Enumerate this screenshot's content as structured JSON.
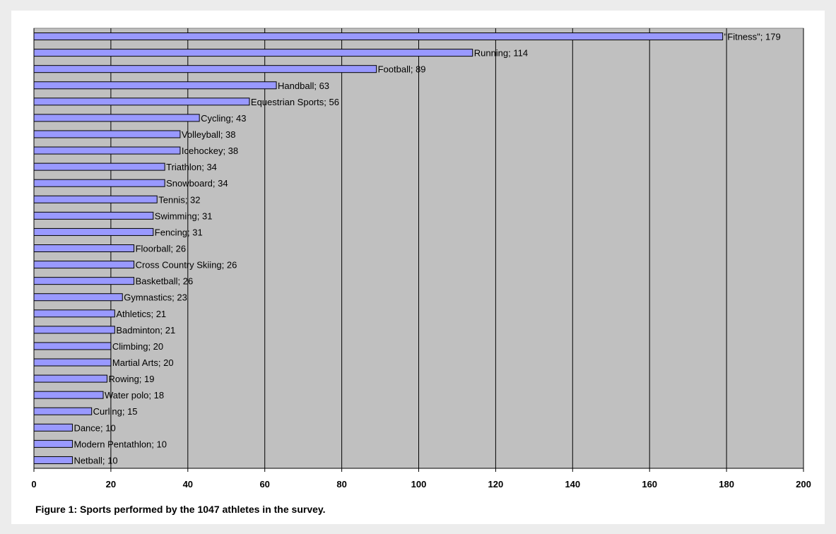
{
  "caption": "Figure 1: Sports performed by the 1047 athletes in the survey.",
  "chart_data": {
    "type": "bar",
    "orientation": "horizontal",
    "title": "",
    "xlabel": "",
    "ylabel": "",
    "xlim": [
      0,
      200
    ],
    "xticks": [
      0,
      20,
      40,
      60,
      80,
      100,
      120,
      140,
      160,
      180,
      200
    ],
    "grid": "vertical",
    "legend": "none",
    "categories": [
      "\"Fitness\"",
      "Running",
      "Football",
      "Handball",
      "Equestrian Sports",
      "Cycling",
      "Volleyball",
      "Icehockey",
      "Triathlon",
      "Snowboard",
      "Tennis",
      "Swimming",
      "Fencing",
      "Floorball",
      "Cross Country Skiing",
      "Basketball",
      "Gymnastics",
      "Athletics",
      "Badminton",
      "Climbing",
      "Martial Arts",
      "Rowing",
      "Water polo",
      "Curling",
      "Dance",
      "Modern Pentathlon",
      "Netball"
    ],
    "values": [
      179,
      114,
      89,
      63,
      56,
      43,
      38,
      38,
      34,
      34,
      32,
      31,
      31,
      26,
      26,
      26,
      23,
      21,
      21,
      20,
      20,
      19,
      18,
      15,
      10,
      10,
      10
    ],
    "colors": {
      "bar_fill": "#9999ff",
      "bar_stroke": "#000000",
      "plot_bg": "#c0c0c0",
      "grid": "#000000"
    }
  }
}
